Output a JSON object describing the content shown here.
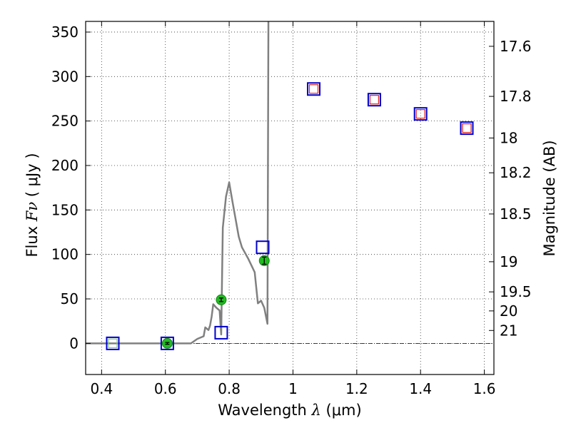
{
  "chart_data": {
    "type": "scatter",
    "xlabel": {
      "prefix": "Wavelength  ",
      "symbol": "λ",
      "suffix": " (μm)"
    },
    "ylabel": {
      "prefix": "Flux  ",
      "symbol": "Fν",
      "suffix": "  ( μJy )"
    },
    "y2label": "Magnitude (AB)",
    "xlim": [
      0.35,
      1.63
    ],
    "ylim": [
      -35,
      362
    ],
    "grid": true,
    "x_ticks": [
      {
        "value": 0.4,
        "label": "0.4"
      },
      {
        "value": 0.6,
        "label": "0.6"
      },
      {
        "value": 0.8,
        "label": "0.8"
      },
      {
        "value": 1.0,
        "label": "1"
      },
      {
        "value": 1.2,
        "label": "1.2"
      },
      {
        "value": 1.4,
        "label": "1.4"
      },
      {
        "value": 1.6,
        "label": "1.6"
      }
    ],
    "y_ticks": [
      {
        "value": 0,
        "label": "0"
      },
      {
        "value": 50,
        "label": "50"
      },
      {
        "value": 100,
        "label": "100"
      },
      {
        "value": 150,
        "label": "150"
      },
      {
        "value": 200,
        "label": "200"
      },
      {
        "value": 250,
        "label": "250"
      },
      {
        "value": 300,
        "label": "300"
      },
      {
        "value": 350,
        "label": "350"
      }
    ],
    "y2_ticks": [
      {
        "label": "17.6",
        "flux": 334
      },
      {
        "label": "17.8",
        "flux": 277.7
      },
      {
        "label": "18",
        "flux": 230.9
      },
      {
        "label": "18.2",
        "flux": 191.8
      },
      {
        "label": "18.5",
        "flux": 145.5
      },
      {
        "label": "19",
        "flux": 91.8
      },
      {
        "label": "19.5",
        "flux": 57.9
      },
      {
        "label": "20",
        "flux": 36.5
      },
      {
        "label": "21",
        "flux": 14.5
      }
    ],
    "series": [
      {
        "kind": "model_sed_line",
        "color": "#808080",
        "points": [
          [
            0.35,
            0
          ],
          [
            0.6,
            0
          ],
          [
            0.68,
            0
          ],
          [
            0.7,
            5
          ],
          [
            0.72,
            8
          ],
          [
            0.725,
            18
          ],
          [
            0.735,
            15
          ],
          [
            0.74,
            20
          ],
          [
            0.745,
            30
          ],
          [
            0.75,
            44
          ],
          [
            0.76,
            40
          ],
          [
            0.77,
            37
          ],
          [
            0.775,
            10
          ],
          [
            0.78,
            130
          ],
          [
            0.79,
            165
          ],
          [
            0.8,
            181
          ],
          [
            0.81,
            160
          ],
          [
            0.83,
            120
          ],
          [
            0.84,
            108
          ],
          [
            0.86,
            95
          ],
          [
            0.88,
            80
          ],
          [
            0.89,
            45
          ],
          [
            0.9,
            48
          ],
          [
            0.91,
            40
          ],
          [
            0.92,
            22
          ],
          [
            0.923,
            362
          ]
        ]
      },
      {
        "kind": "observed_photometry",
        "marker": "circle",
        "color": "#22bb22",
        "points": [
          {
            "x": 0.606,
            "y": 0,
            "yerr": 1
          },
          {
            "x": 0.775,
            "y": 49,
            "yerr": 2
          },
          {
            "x": 0.91,
            "y": 93,
            "yerr": 4
          }
        ]
      },
      {
        "kind": "model_photometry",
        "marker": "open-square",
        "color": "#0000cc",
        "points": [
          {
            "x": 0.435,
            "y": 0
          },
          {
            "x": 0.606,
            "y": 0
          },
          {
            "x": 0.775,
            "y": 12
          },
          {
            "x": 0.905,
            "y": 108
          },
          {
            "x": 1.065,
            "y": 286
          },
          {
            "x": 1.255,
            "y": 274
          },
          {
            "x": 1.4,
            "y": 258
          },
          {
            "x": 1.545,
            "y": 242
          }
        ]
      },
      {
        "kind": "inner_square_markers",
        "marker": "open-square-small",
        "color": "#dd2222",
        "points": [
          {
            "x": 1.065,
            "y": 286
          },
          {
            "x": 1.255,
            "y": 274
          },
          {
            "x": 1.4,
            "y": 258
          },
          {
            "x": 1.545,
            "y": 242
          }
        ]
      },
      {
        "kind": "inner_square_markers_faint",
        "marker": "open-square-small",
        "color": "#88cc88",
        "points": [
          {
            "x": 0.435,
            "y": 0
          }
        ]
      }
    ]
  }
}
